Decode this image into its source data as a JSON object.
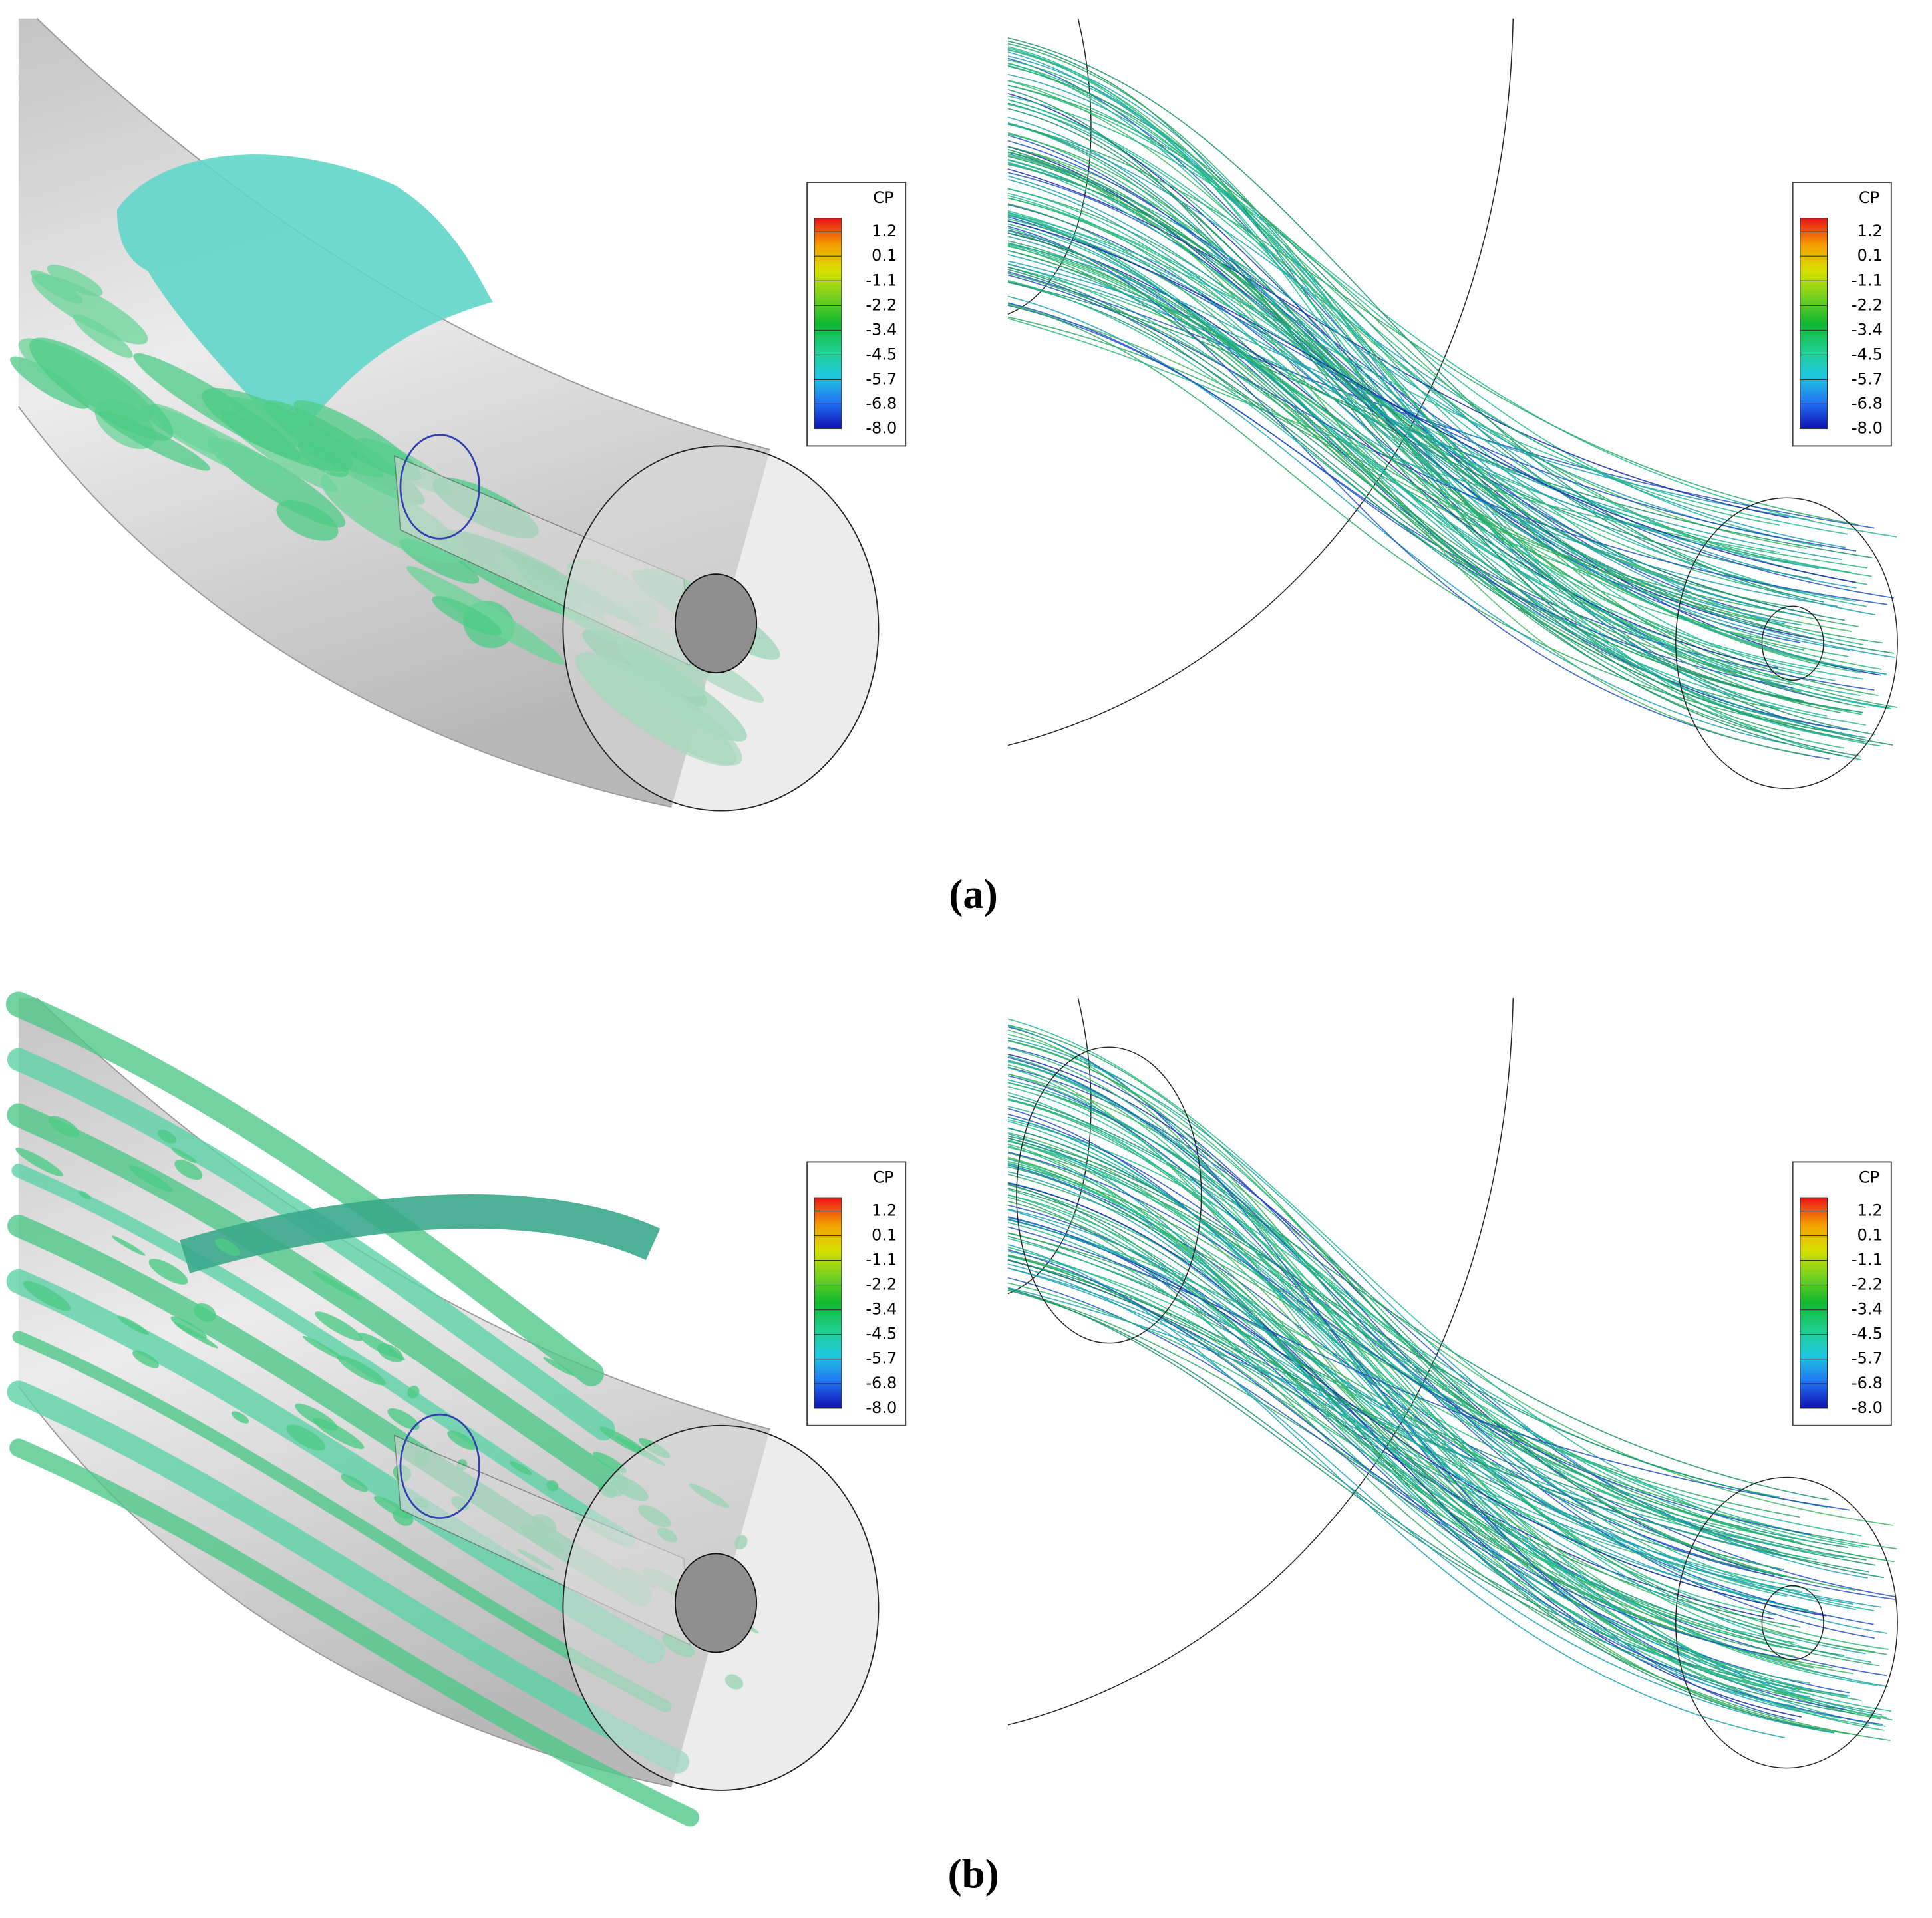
{
  "figure": {
    "panels": [
      {
        "colorbar": {
          "title": "CP",
          "labels": [
            "1.2",
            "0.1",
            "-1.1",
            "-2.2",
            "-3.4",
            "-4.5",
            "-5.7",
            "-6.8",
            "-8.0"
          ]
        }
      },
      {
        "colorbar": {
          "title": "CP",
          "labels": [
            "1.2",
            "0.1",
            "-1.1",
            "-2.2",
            "-3.4",
            "-4.5",
            "-5.7",
            "-6.8",
            "-8.0"
          ]
        }
      },
      {
        "colorbar": {
          "title": "CP",
          "labels": [
            "1.2",
            "0.1",
            "-1.1",
            "-2.2",
            "-3.4",
            "-4.5",
            "-5.7",
            "-6.8",
            "-8.0"
          ]
        }
      },
      {
        "colorbar": {
          "title": "CP",
          "labels": [
            "1.2",
            "0.1",
            "-1.1",
            "-2.2",
            "-3.4",
            "-4.5",
            "-5.7",
            "-6.8",
            "-8.0"
          ]
        }
      }
    ],
    "captions": [
      "(a)",
      "(b)"
    ]
  }
}
